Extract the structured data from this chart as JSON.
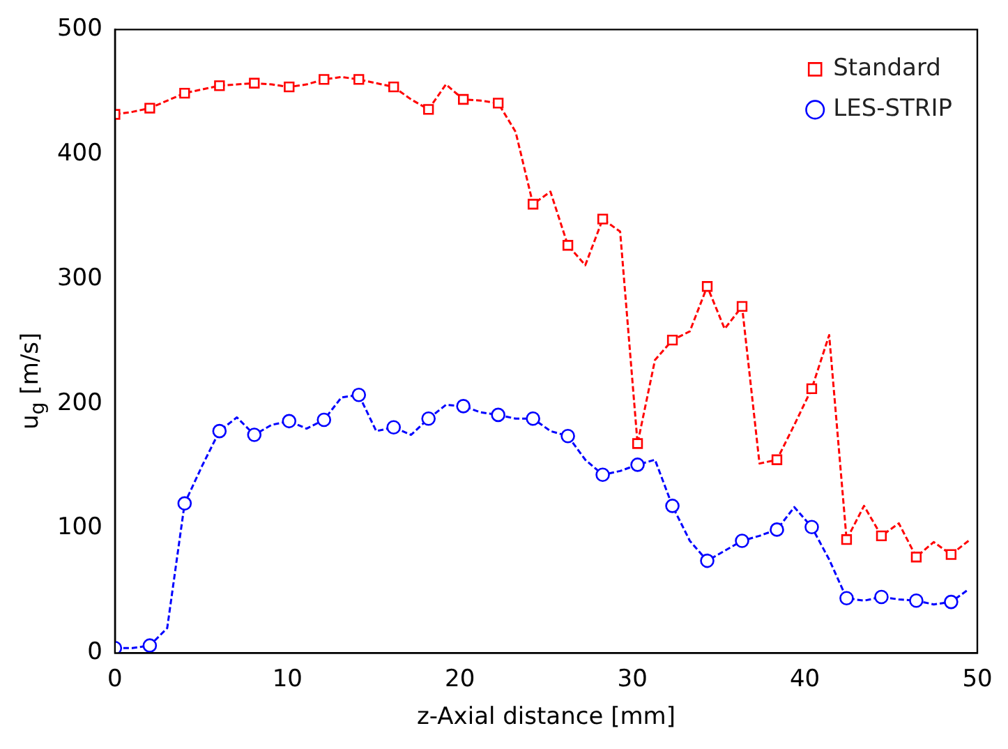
{
  "chart_data": {
    "type": "line",
    "xlabel": "z-Axial distance [mm]",
    "ylabel": "u$_{g}$ [m/s]",
    "x": [
      0,
      1.01,
      2.02,
      3.03,
      4.04,
      5.05,
      6.06,
      7.07,
      8.08,
      9.09,
      10.1,
      11.11,
      12.12,
      13.13,
      14.14,
      15.15,
      16.16,
      17.17,
      18.18,
      19.19,
      20.2,
      21.21,
      22.22,
      23.23,
      24.24,
      25.25,
      26.26,
      27.27,
      28.28,
      29.29,
      30.3,
      31.31,
      32.32,
      33.33,
      34.34,
      35.35,
      36.36,
      37.37,
      38.38,
      39.39,
      40.4,
      41.41,
      42.42,
      43.43,
      44.44,
      45.45,
      46.46,
      47.47,
      48.48,
      49.49
    ],
    "series": [
      {
        "name": "Standard",
        "color": "#ff0000",
        "marker": "square",
        "values": [
          432,
          434,
          437,
          443,
          449,
          452,
          455,
          456,
          457,
          456,
          454,
          456,
          460,
          462,
          460,
          457,
          454,
          444,
          436,
          456,
          444,
          443,
          441,
          418,
          360,
          370,
          327,
          311,
          348,
          338,
          168,
          235,
          251,
          258,
          294,
          260,
          278,
          152,
          155,
          183,
          212,
          255,
          91,
          118,
          94,
          104,
          77,
          89,
          79,
          90
        ]
      },
      {
        "name": "LES-STRIP",
        "color": "#0000ff",
        "marker": "circle",
        "values": [
          4,
          4,
          6,
          20,
          120,
          150,
          178,
          189,
          175,
          183,
          186,
          180,
          187,
          205,
          207,
          178,
          181,
          175,
          188,
          199,
          198,
          193,
          191,
          188,
          188,
          178,
          174,
          155,
          143,
          146,
          151,
          155,
          118,
          90,
          74,
          82,
          90,
          94,
          99,
          117,
          101,
          75,
          44,
          42,
          45,
          43,
          42,
          39,
          41,
          51
        ]
      }
    ],
    "xlim": [
      0,
      50
    ],
    "xticks": [
      0,
      10,
      20,
      30,
      40,
      50
    ],
    "ylim": [
      0,
      500
    ],
    "yticks": [
      0,
      100,
      200,
      300,
      400,
      500
    ],
    "grid": false,
    "legend": "top right",
    "line_style": "dashed"
  }
}
